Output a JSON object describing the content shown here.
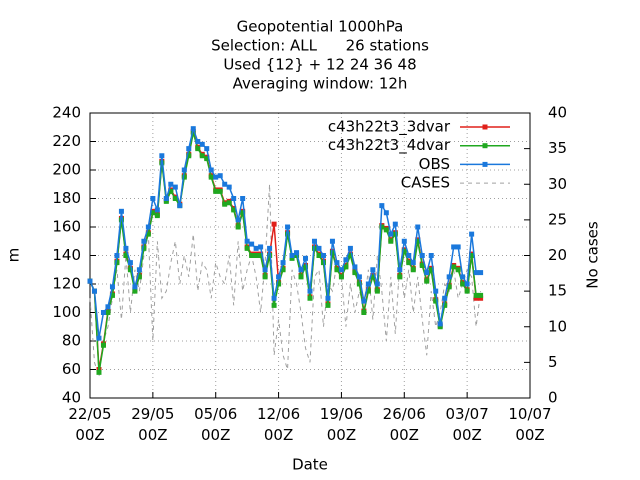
{
  "chart_data": {
    "type": "line",
    "title": [
      "Geopotential 1000hPa",
      "Selection: ALL      26 stations",
      "Used {12} + 12 24 36 48",
      "Averaging window: 12h"
    ],
    "x_label": "Date",
    "y_label": "m",
    "y2_label": "No cases",
    "x": [
      "22/05 00Z",
      "22/05 12Z",
      "23/05 00Z",
      "23/05 12Z",
      "24/05 00Z",
      "24/05 12Z",
      "25/05 00Z",
      "25/05 12Z",
      "26/05 00Z",
      "26/05 12Z",
      "27/05 00Z",
      "27/05 12Z",
      "28/05 00Z",
      "28/05 12Z",
      "29/05 00Z",
      "29/05 12Z",
      "30/05 00Z",
      "30/05 12Z",
      "31/05 00Z",
      "31/05 12Z",
      "01/06 00Z",
      "01/06 12Z",
      "02/06 00Z",
      "02/06 12Z",
      "03/06 00Z",
      "03/06 12Z",
      "04/06 00Z",
      "04/06 12Z",
      "05/06 00Z",
      "05/06 12Z",
      "06/06 00Z",
      "06/06 12Z",
      "07/06 00Z",
      "07/06 12Z",
      "08/06 00Z",
      "08/06 12Z",
      "09/06 00Z",
      "09/06 12Z",
      "10/06 00Z",
      "10/06 12Z",
      "11/06 00Z",
      "11/06 12Z",
      "12/06 00Z",
      "12/06 12Z",
      "13/06 00Z",
      "13/06 12Z",
      "14/06 00Z",
      "14/06 12Z",
      "15/06 00Z",
      "15/06 12Z",
      "16/06 00Z",
      "16/06 12Z",
      "17/06 00Z",
      "17/06 12Z",
      "18/06 00Z",
      "18/06 12Z",
      "19/06 00Z",
      "19/06 12Z",
      "20/06 00Z",
      "20/06 12Z",
      "21/06 00Z",
      "21/06 12Z",
      "22/06 00Z",
      "22/06 12Z",
      "23/06 00Z",
      "23/06 12Z",
      "24/06 00Z",
      "24/06 12Z",
      "25/06 00Z",
      "25/06 12Z",
      "26/06 00Z",
      "26/06 12Z",
      "27/06 00Z",
      "27/06 12Z",
      "28/06 00Z",
      "28/06 12Z",
      "29/06 00Z",
      "29/06 12Z",
      "30/06 00Z",
      "30/06 12Z",
      "01/07 00Z",
      "01/07 12Z",
      "02/07 00Z",
      "02/07 12Z",
      "03/07 00Z",
      "03/07 12Z",
      "04/07 00Z",
      "04/07 12Z"
    ],
    "series": [
      {
        "name": "c43h22t3_3dvar",
        "color": "#e0201a",
        "marker": true,
        "dashed": false,
        "values": [
          122,
          115,
          60,
          78,
          101,
          113,
          136,
          166,
          141,
          131,
          116,
          126,
          146,
          156,
          171,
          169,
          206,
          179,
          186,
          181,
          176,
          196,
          211,
          227,
          216,
          211,
          209,
          196,
          186,
          186,
          177,
          178,
          173,
          161,
          171,
          146,
          141,
          141,
          141,
          126,
          141,
          162,
          121,
          131,
          156,
          139,
          141,
          126,
          133,
          111,
          146,
          141,
          136,
          106,
          143,
          131,
          126,
          133,
          141,
          129,
          121,
          101,
          116,
          126,
          116,
          161,
          159,
          151,
          156,
          126,
          144,
          136,
          131,
          151,
          134,
          123,
          131,
          109,
          91,
          106,
          119,
          133,
          131,
          121,
          116,
          141,
          110,
          110
        ]
      },
      {
        "name": "c43h22t3_4dvar",
        "color": "#20a820",
        "marker": true,
        "dashed": false,
        "values": [
          122,
          115,
          58,
          77,
          100,
          112,
          135,
          165,
          140,
          130,
          115,
          125,
          145,
          155,
          170,
          168,
          205,
          178,
          185,
          180,
          175,
          195,
          210,
          226,
          215,
          210,
          208,
          195,
          185,
          185,
          176,
          177,
          172,
          160,
          170,
          145,
          140,
          140,
          140,
          125,
          140,
          105,
          120,
          130,
          155,
          138,
          140,
          125,
          132,
          110,
          145,
          140,
          135,
          105,
          142,
          130,
          125,
          132,
          140,
          128,
          120,
          100,
          115,
          125,
          115,
          160,
          158,
          150,
          155,
          125,
          143,
          135,
          130,
          150,
          133,
          122,
          130,
          108,
          90,
          105,
          118,
          132,
          130,
          120,
          115,
          140,
          112,
          112
        ]
      },
      {
        "name": "OBS",
        "color": "#1a78dc",
        "marker": true,
        "dashed": false,
        "values": [
          122,
          115,
          82,
          100,
          104,
          118,
          140,
          171,
          145,
          135,
          118,
          130,
          150,
          160,
          180,
          172,
          210,
          180,
          190,
          188,
          175,
          200,
          215,
          229,
          220,
          218,
          215,
          200,
          195,
          196,
          190,
          188,
          180,
          165,
          180,
          150,
          148,
          145,
          146,
          130,
          145,
          110,
          125,
          135,
          160,
          140,
          142,
          130,
          138,
          115,
          150,
          145,
          140,
          110,
          150,
          135,
          130,
          137,
          145,
          132,
          125,
          108,
          120,
          130,
          120,
          175,
          170,
          155,
          162,
          130,
          150,
          140,
          135,
          160,
          140,
          128,
          140,
          115,
          92,
          110,
          125,
          146,
          146,
          125,
          120,
          155,
          128,
          128
        ]
      },
      {
        "name": "CASES",
        "color": "#a0a0a0",
        "marker": false,
        "dashed": true,
        "axis": "y2",
        "values": [
          14,
          5,
          3,
          8,
          10,
          14,
          18,
          11,
          20,
          12,
          18,
          15,
          20,
          23,
          8,
          22,
          14,
          15,
          19,
          22,
          16,
          20,
          17,
          23,
          15,
          19,
          18,
          14,
          19,
          17,
          16,
          20,
          13,
          22,
          15,
          18,
          20,
          17,
          12,
          19,
          30,
          6,
          11,
          6,
          4,
          18,
          16,
          12,
          7,
          5,
          17,
          18,
          10,
          16,
          15,
          19,
          17,
          10,
          16,
          12,
          15,
          13,
          18,
          11,
          20,
          15,
          8,
          17,
          9,
          19,
          14,
          18,
          12,
          17,
          11,
          6,
          15,
          10,
          12,
          16,
          15,
          18,
          14,
          16,
          18,
          17,
          10,
          15
        ]
      }
    ],
    "xlim": [
      "22/05 00Z",
      "10/07 00Z"
    ],
    "xticks": [
      "22/05 00Z",
      "29/05 00Z",
      "05/06 00Z",
      "12/06 00Z",
      "19/06 00Z",
      "26/06 00Z",
      "03/07 00Z",
      "10/07 00Z"
    ],
    "ylim": [
      40,
      240
    ],
    "yticks": [
      40,
      60,
      80,
      100,
      120,
      140,
      160,
      180,
      200,
      220,
      240
    ],
    "y2lim": [
      0,
      40
    ],
    "y2ticks": [
      0,
      5,
      10,
      15,
      20,
      25,
      30,
      35,
      40
    ],
    "grid": true,
    "legend": "top-right"
  }
}
